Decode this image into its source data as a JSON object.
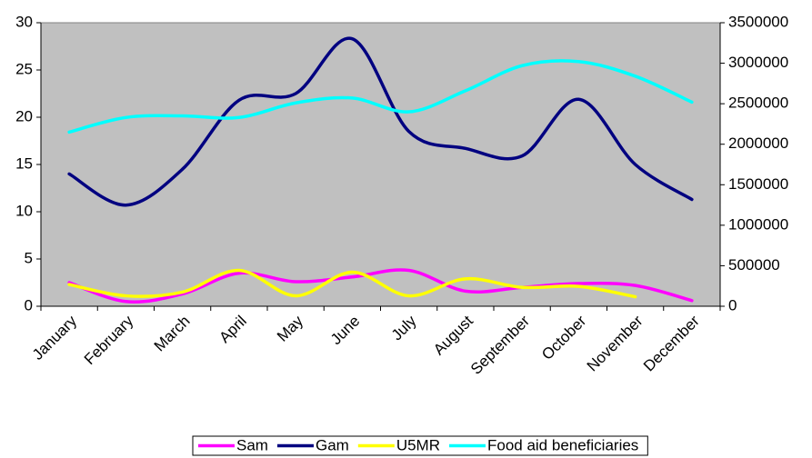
{
  "chart_data": {
    "type": "line",
    "categories": [
      "January",
      "February",
      "March",
      "April",
      "May",
      "June",
      "July",
      "August",
      "September",
      "October",
      "November",
      "December"
    ],
    "series": [
      {
        "name": "Sam",
        "color": "#ff00ff",
        "values": [
          2.5,
          0.5,
          1.3,
          3.5,
          2.6,
          3.1,
          3.8,
          1.6,
          2.0,
          2.4,
          2.2,
          0.6
        ]
      },
      {
        "name": "Gam",
        "color": "#000080",
        "values": [
          14,
          10.7,
          14.5,
          21.8,
          22.5,
          28.3,
          18.5,
          16.7,
          15.9,
          21.9,
          15,
          11.3
        ]
      },
      {
        "name": "U5MR",
        "color": "#ffff00",
        "values": [
          2.3,
          1.1,
          1.5,
          3.8,
          1.1,
          3.6,
          1.1,
          2.9,
          2.0,
          2.1,
          1.0,
          null
        ]
      },
      {
        "name": "Food aid beneficiaries",
        "color": "#00ffff",
        "axis": "y2",
        "values": [
          2150000,
          2330000,
          2350000,
          2330000,
          2510000,
          2570000,
          2400000,
          2660000,
          2970000,
          3020000,
          2840000,
          2520000
        ]
      }
    ],
    "ylim": [
      0,
      30
    ],
    "yticks": [
      0,
      5,
      10,
      15,
      20,
      25,
      30
    ],
    "y2lim": [
      0,
      3500000
    ],
    "y2ticks": [
      0,
      500000,
      1000000,
      1500000,
      2000000,
      2500000,
      3000000,
      3500000
    ],
    "legend": "bottom",
    "smooth": true,
    "plot_background": "#c0c0c0"
  }
}
